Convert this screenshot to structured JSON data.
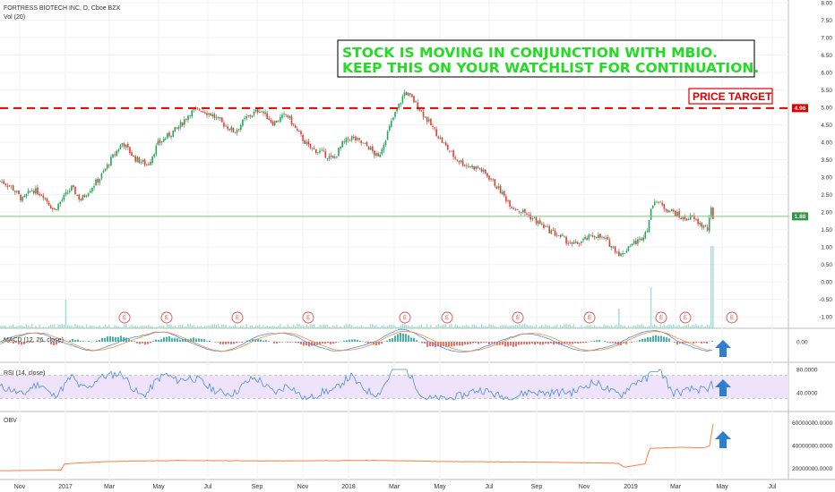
{
  "chart_data": [
    {
      "type": "candlestick",
      "title": "FORTRESS BIOTECH INC, D, Cboe BZX",
      "volume_label": "Vol (20)",
      "y_ticks": [
        "8.00",
        "7.50",
        "7.00",
        "6.50",
        "6.00",
        "5.50",
        "5.00",
        "4.50",
        "4.00",
        "3.50",
        "3.00",
        "2.50",
        "2.00",
        "1.50",
        "1.00",
        "0.50",
        "0.00",
        "-0.50",
        "-1.00"
      ],
      "ylim": [
        -1.1,
        8.0
      ],
      "x_ticks": [
        "Nov",
        "2017",
        "Mar",
        "May",
        "Jul",
        "Sep",
        "Nov",
        "2018",
        "Mar",
        "May",
        "Jul",
        "Sep",
        "Nov",
        "2019",
        "Mar",
        "May",
        "Jul"
      ],
      "price_path": [
        [
          0,
          2.9
        ],
        [
          12,
          2.75
        ],
        [
          25,
          2.35
        ],
        [
          36,
          2.65
        ],
        [
          48,
          2.5
        ],
        [
          60,
          2.05
        ],
        [
          72,
          2.45
        ],
        [
          80,
          2.7
        ],
        [
          90,
          2.35
        ],
        [
          100,
          2.65
        ],
        [
          112,
          3.0
        ],
        [
          125,
          3.55
        ],
        [
          137,
          4.0
        ],
        [
          150,
          3.55
        ],
        [
          165,
          3.35
        ],
        [
          176,
          3.95
        ],
        [
          188,
          4.2
        ],
        [
          200,
          4.45
        ],
        [
          212,
          4.85
        ],
        [
          224,
          4.95
        ],
        [
          236,
          4.8
        ],
        [
          248,
          4.55
        ],
        [
          262,
          4.3
        ],
        [
          275,
          4.7
        ],
        [
          290,
          4.95
        ],
        [
          305,
          4.55
        ],
        [
          320,
          4.8
        ],
        [
          332,
          4.3
        ],
        [
          345,
          3.85
        ],
        [
          360,
          3.7
        ],
        [
          372,
          3.5
        ],
        [
          382,
          3.95
        ],
        [
          392,
          4.15
        ],
        [
          402,
          4.0
        ],
        [
          412,
          3.85
        ],
        [
          422,
          3.55
        ],
        [
          430,
          4.1
        ],
        [
          438,
          4.65
        ],
        [
          446,
          5.1
        ],
        [
          452,
          5.45
        ],
        [
          460,
          5.25
        ],
        [
          470,
          4.9
        ],
        [
          482,
          4.45
        ],
        [
          494,
          4.0
        ],
        [
          508,
          3.55
        ],
        [
          520,
          3.35
        ],
        [
          535,
          3.25
        ],
        [
          548,
          2.95
        ],
        [
          560,
          2.55
        ],
        [
          572,
          2.15
        ],
        [
          585,
          2.0
        ],
        [
          598,
          1.75
        ],
        [
          612,
          1.5
        ],
        [
          625,
          1.3
        ],
        [
          640,
          1.05
        ],
        [
          652,
          1.2
        ],
        [
          664,
          1.35
        ],
        [
          676,
          1.2
        ],
        [
          688,
          0.9
        ],
        [
          694,
          0.75
        ],
        [
          702,
          1.05
        ],
        [
          714,
          1.2
        ],
        [
          722,
          1.5
        ],
        [
          730,
          2.4
        ],
        [
          740,
          2.15
        ],
        [
          752,
          2.0
        ],
        [
          762,
          1.8
        ],
        [
          772,
          1.85
        ],
        [
          782,
          1.65
        ],
        [
          790,
          1.5
        ],
        [
          794,
          2.1
        ],
        [
          796,
          1.85
        ]
      ],
      "horizontal_lines": [
        {
          "name": "price-target",
          "value": 4.98,
          "style": "dashed",
          "color": "#e00000"
        },
        {
          "name": "last-price",
          "value": 1.88,
          "style": "solid",
          "color": "#7bc47f"
        }
      ],
      "price_labels": [
        {
          "text": "4.98",
          "value": 4.98,
          "color": "#e00000"
        },
        {
          "text": "1.88",
          "value": 1.88,
          "color": "#2e9a45"
        }
      ],
      "annotations": [
        {
          "text": "STOCK IS MOVING IN CONJUNCTION WITH MBIO.",
          "color": "#22dd22"
        },
        {
          "text": "KEEP THIS ON YOUR WATCHLIST FOR CONTINUATION.",
          "color": "#22dd22"
        },
        {
          "text": "PRICE TARGET",
          "color": "#e00000"
        }
      ],
      "earnings_marker": "E",
      "earnings_count": 11,
      "colors": {
        "up": "#26a65b",
        "down": "#e0403a",
        "volume": "#8fd3c8"
      }
    },
    {
      "type": "histogram",
      "title": "MACD (12, 26, close)",
      "y_ticks": [
        "0.00"
      ],
      "series": [
        {
          "name": "MACD",
          "color": "#4a90d9"
        },
        {
          "name": "Signal",
          "color": "#ff8a3d"
        }
      ],
      "colors": {
        "pos": "#26a69a",
        "neg": "#ef5350"
      },
      "arrow": "up"
    },
    {
      "type": "line",
      "title": "RSI (14, close)",
      "y_ticks": [
        "80.0000",
        "40.0000"
      ],
      "ylim": [
        25,
        85
      ],
      "band": [
        30,
        70
      ],
      "color": "#4a90d9",
      "arrow": "up"
    },
    {
      "type": "line",
      "title": "OBV",
      "y_ticks": [
        "60000000.0000",
        "40000000.0000",
        "20000000.0000"
      ],
      "ylim": [
        15000000,
        62000000
      ],
      "color": "#ff7f3f",
      "values": [
        [
          0,
          18000000
        ],
        [
          68,
          18500000
        ],
        [
          72,
          24000000
        ],
        [
          120,
          26000000
        ],
        [
          200,
          27000000
        ],
        [
          300,
          26500000
        ],
        [
          420,
          27000000
        ],
        [
          500,
          26000000
        ],
        [
          600,
          25500000
        ],
        [
          690,
          24500000
        ],
        [
          697,
          21000000
        ],
        [
          720,
          24000000
        ],
        [
          725,
          37500000
        ],
        [
          760,
          38500000
        ],
        [
          785,
          38000000
        ],
        [
          793,
          40000000
        ],
        [
          795,
          59000000
        ]
      ],
      "arrow": "up"
    }
  ]
}
